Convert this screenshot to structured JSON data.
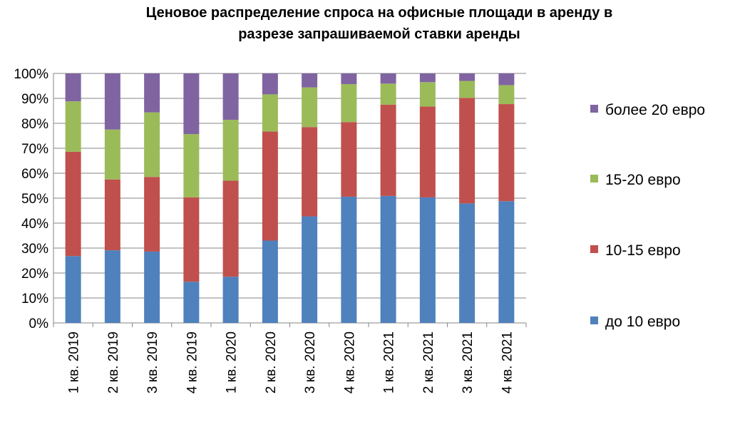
{
  "chart_data": {
    "type": "bar",
    "stacked": "percent",
    "title": [
      "Ценовое распределение спроса на офисные площади в аренду в",
      "разрезе запрашиваемой ставки аренды"
    ],
    "xlabel": "",
    "ylabel": "",
    "ylim": [
      0,
      100
    ],
    "yticks": [
      "0%",
      "10%",
      "20%",
      "30%",
      "40%",
      "50%",
      "60%",
      "70%",
      "80%",
      "90%",
      "100%"
    ],
    "grid": true,
    "legend_position": "right",
    "categories": [
      "1 кв. 2019",
      "2 кв. 2019",
      "3 кв. 2019",
      "4 кв. 2019",
      "1 кв. 2020",
      "2 кв. 2020",
      "3 кв. 2020",
      "4 кв. 2020",
      "1 кв. 2021",
      "2 кв. 2021",
      "3 кв. 2021",
      "4 кв. 2021"
    ],
    "series": [
      {
        "name": "до 10 евро",
        "color": "#4F81BD",
        "values": [
          26.8,
          29.1,
          28.6,
          16.5,
          18.5,
          33.0,
          42.7,
          50.6,
          50.9,
          50.3,
          47.9,
          48.8
        ]
      },
      {
        "name": "10-15 евро",
        "color": "#C0504D",
        "values": [
          41.8,
          28.4,
          29.9,
          33.8,
          38.5,
          43.7,
          35.8,
          29.9,
          36.6,
          36.4,
          42.3,
          38.9
        ]
      },
      {
        "name": "15-20 евро",
        "color": "#9BBB59",
        "values": [
          20.2,
          20.0,
          25.9,
          25.4,
          24.4,
          14.9,
          15.9,
          15.2,
          8.4,
          9.8,
          6.8,
          7.6
        ]
      },
      {
        "name": "более 20 евро",
        "color": "#8064A2",
        "values": [
          11.2,
          22.5,
          15.6,
          24.3,
          18.6,
          8.4,
          5.6,
          4.3,
          4.1,
          3.5,
          3.0,
          4.7
        ]
      }
    ]
  }
}
